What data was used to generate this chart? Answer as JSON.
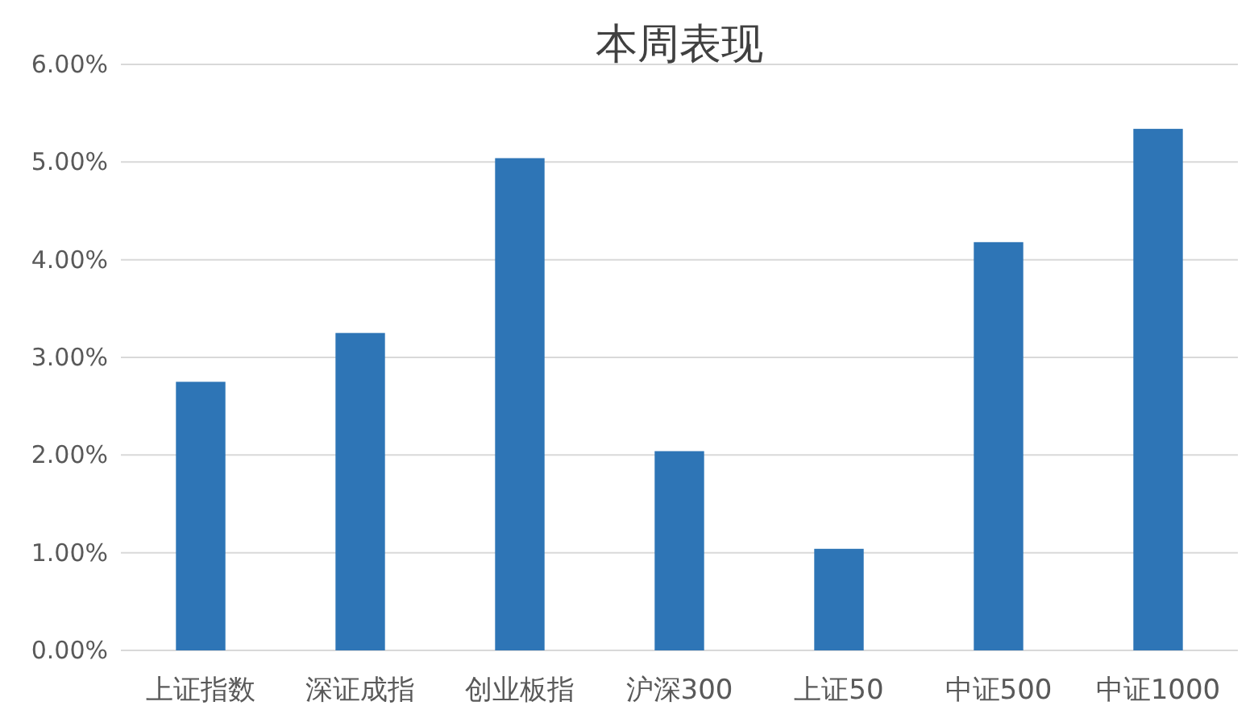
{
  "chart_data": {
    "type": "bar",
    "title": "本周表现",
    "categories": [
      "上证指数",
      "深证成指",
      "创业板指",
      "沪深300",
      "上证50",
      "中证500",
      "中证1000"
    ],
    "values": [
      2.75,
      3.25,
      5.04,
      2.04,
      1.04,
      4.18,
      5.34
    ],
    "color": "#2e75b6",
    "ylim": [
      0,
      6
    ],
    "yticks": [
      {
        "value": 0,
        "label": "0.00%"
      },
      {
        "value": 1,
        "label": "1.00%"
      },
      {
        "value": 2,
        "label": "2.00%"
      },
      {
        "value": 3,
        "label": "3.00%"
      },
      {
        "value": 4,
        "label": "4.00%"
      },
      {
        "value": 5,
        "label": "5.00%"
      },
      {
        "value": 6,
        "label": "6.00%"
      }
    ],
    "grid": "y"
  }
}
